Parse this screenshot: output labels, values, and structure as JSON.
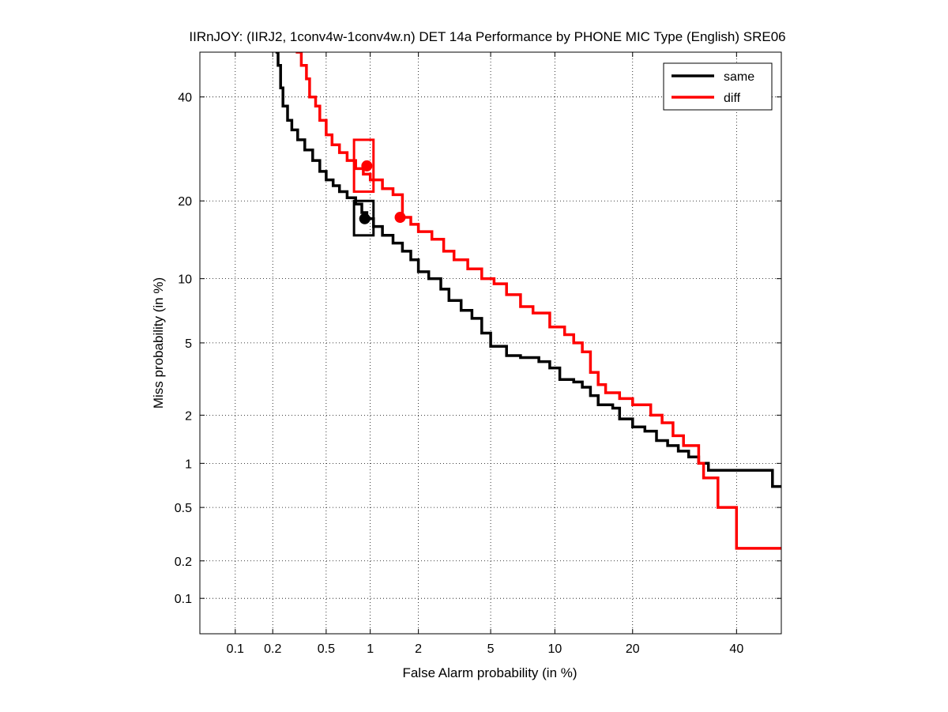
{
  "chart_data": {
    "type": "line",
    "title": "IIRnJOY: (IIRJ2, 1conv4w-1conv4w.n) DET 14a Performance by PHONE MIC Type (English) SRE06",
    "xlabel": "False Alarm probability (in %)",
    "ylabel": "Miss probability (in %)",
    "scale": "normal-deviate (probit) on both axes",
    "xlim": [
      0.05,
      50
    ],
    "ylim": [
      0.05,
      50
    ],
    "x_ticks": [
      0.1,
      0.2,
      0.5,
      1,
      2,
      5,
      10,
      20,
      40
    ],
    "x_tick_labels": [
      "0.1",
      "0.2",
      "0.5",
      "1",
      "2",
      "5",
      "10",
      "20",
      "40"
    ],
    "y_ticks": [
      0.1,
      0.2,
      0.5,
      1,
      2,
      5,
      10,
      20,
      40
    ],
    "y_tick_labels": [
      "0.1",
      "0.2",
      "0.5",
      "1",
      "2",
      "5",
      "10",
      "20",
      "40"
    ],
    "grid": true,
    "legend": "top-right",
    "series": [
      {
        "name": "same",
        "color": "#000000",
        "points": [
          [
            0.21,
            50
          ],
          [
            0.22,
            47
          ],
          [
            0.23,
            42
          ],
          [
            0.24,
            38
          ],
          [
            0.26,
            35
          ],
          [
            0.28,
            33
          ],
          [
            0.31,
            31
          ],
          [
            0.35,
            29
          ],
          [
            0.4,
            27
          ],
          [
            0.45,
            25
          ],
          [
            0.5,
            23.5
          ],
          [
            0.56,
            22.5
          ],
          [
            0.62,
            21.5
          ],
          [
            0.7,
            20.5
          ],
          [
            0.8,
            19.5
          ],
          [
            0.88,
            18.2
          ],
          [
            0.95,
            17.3
          ],
          [
            1.05,
            16.2
          ],
          [
            1.2,
            15
          ],
          [
            1.4,
            14
          ],
          [
            1.6,
            13
          ],
          [
            1.8,
            12
          ],
          [
            2.0,
            10.7
          ],
          [
            2.3,
            10
          ],
          [
            2.7,
            9
          ],
          [
            3.0,
            8
          ],
          [
            3.5,
            7.2
          ],
          [
            4.0,
            6.6
          ],
          [
            4.5,
            5.6
          ],
          [
            5.0,
            4.8
          ],
          [
            6.0,
            4.3
          ],
          [
            7.0,
            4.2
          ],
          [
            8.5,
            4.0
          ],
          [
            9.5,
            3.7
          ],
          [
            10.5,
            3.2
          ],
          [
            12,
            3.1
          ],
          [
            13,
            2.9
          ],
          [
            14,
            2.6
          ],
          [
            15,
            2.3
          ],
          [
            17,
            2.2
          ],
          [
            18,
            1.9
          ],
          [
            20,
            1.7
          ],
          [
            22,
            1.6
          ],
          [
            24,
            1.4
          ],
          [
            26,
            1.3
          ],
          [
            28,
            1.2
          ],
          [
            30,
            1.1
          ],
          [
            32,
            1.0
          ],
          [
            34,
            0.9
          ],
          [
            45,
            0.9
          ],
          [
            48,
            0.7
          ],
          [
            50,
            0.7
          ]
        ]
      },
      {
        "name": "diff",
        "color": "#ff0000",
        "points": [
          [
            0.3,
            50
          ],
          [
            0.33,
            47
          ],
          [
            0.36,
            44
          ],
          [
            0.38,
            40
          ],
          [
            0.42,
            38
          ],
          [
            0.45,
            35
          ],
          [
            0.5,
            32
          ],
          [
            0.55,
            30
          ],
          [
            0.62,
            28.5
          ],
          [
            0.7,
            27
          ],
          [
            0.8,
            25.5
          ],
          [
            0.9,
            24.5
          ],
          [
            1.0,
            23.5
          ],
          [
            1.2,
            22
          ],
          [
            1.4,
            21
          ],
          [
            1.6,
            17.5
          ],
          [
            1.8,
            16.5
          ],
          [
            2.0,
            15.5
          ],
          [
            2.4,
            14.5
          ],
          [
            2.8,
            13
          ],
          [
            3.2,
            12
          ],
          [
            3.8,
            11
          ],
          [
            4.5,
            10
          ],
          [
            5.2,
            9.5
          ],
          [
            6.0,
            8.5
          ],
          [
            7.0,
            7.5
          ],
          [
            8.0,
            7
          ],
          [
            9.5,
            6
          ],
          [
            11,
            5.5
          ],
          [
            12,
            5
          ],
          [
            13,
            4.5
          ],
          [
            14,
            3.5
          ],
          [
            15,
            3.0
          ],
          [
            16,
            2.7
          ],
          [
            18,
            2.5
          ],
          [
            20,
            2.3
          ],
          [
            23,
            2.0
          ],
          [
            25,
            1.8
          ],
          [
            27,
            1.5
          ],
          [
            29,
            1.3
          ],
          [
            32,
            1.0
          ],
          [
            33,
            0.8
          ],
          [
            36,
            0.5
          ],
          [
            40,
            0.25
          ],
          [
            50,
            0.25
          ]
        ]
      }
    ],
    "markers": [
      {
        "series": "same",
        "x": 0.92,
        "y": 17.3,
        "box_x": [
          0.78,
          1.05
        ],
        "box_y": [
          15,
          20
        ]
      },
      {
        "series": "diff",
        "x": 0.95,
        "y": 26,
        "box_x": [
          0.78,
          1.05
        ],
        "box_y": [
          21.5,
          31
        ]
      },
      {
        "series": "diff",
        "x": 1.55,
        "y": 17.5
      }
    ]
  }
}
